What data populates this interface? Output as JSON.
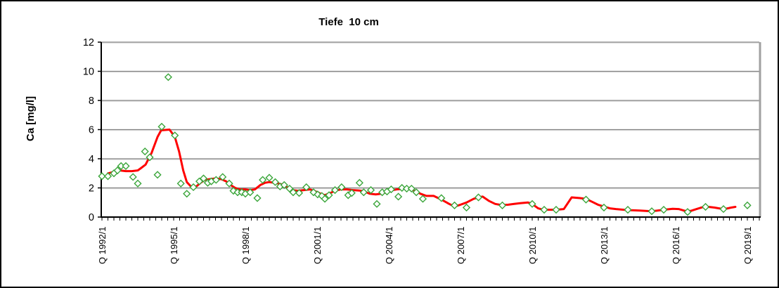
{
  "figure": {
    "title": "Tiefe  10 cm",
    "y_axis_title": "Ca [mg/l]"
  },
  "chart_data": {
    "type": "scatter",
    "title": "Tiefe  10 cm",
    "xlabel": "",
    "ylabel": "Ca [mg/l]",
    "ylim": [
      0,
      12
    ],
    "yticks": [
      0,
      2,
      4,
      6,
      8,
      10,
      12
    ],
    "grid": "horizontal",
    "legend": "none",
    "x_unit": "quarters_since_1992Q1",
    "x_range_quarters": [
      0,
      110
    ],
    "x_minor_tick_every": 1,
    "x_label_every": 12,
    "xtick_labels": [
      "Q 1992/1",
      "Q 1995/1",
      "Q 1998/1",
      "Q 2001/1",
      "Q 2004/1",
      "Q 2007/1",
      "Q 2010/1",
      "Q 2013/1",
      "Q 2016/1",
      "Q 2019/1"
    ],
    "colors": {
      "scatter": "#3BA63B",
      "trend": "#FF0000",
      "gridline": "#808080",
      "gridline_light": "#D9D9D9",
      "plot_border": "#A0A0A0",
      "axis": "#000000"
    },
    "series": [
      {
        "id": "measurements",
        "type": "scatter",
        "marker": "open-diamond",
        "color": "#3BA63B",
        "points": [
          [
            0,
            2.8
          ],
          [
            1,
            2.8
          ],
          [
            2,
            3.0
          ],
          [
            2.6,
            3.2
          ],
          [
            3.2,
            3.5
          ],
          [
            4,
            3.5
          ],
          [
            5.2,
            2.75
          ],
          [
            6,
            2.3
          ],
          [
            7.2,
            4.5
          ],
          [
            8,
            4.1
          ],
          [
            9.3,
            2.9
          ],
          [
            10,
            6.2
          ],
          [
            11.1,
            9.6
          ],
          [
            12.2,
            5.6
          ],
          [
            13.2,
            2.3
          ],
          [
            14.2,
            1.6
          ],
          [
            15.3,
            2.05
          ],
          [
            16.3,
            2.45
          ],
          [
            17,
            2.65
          ],
          [
            17.7,
            2.35
          ],
          [
            18.3,
            2.45
          ],
          [
            19.1,
            2.55
          ],
          [
            20.2,
            2.75
          ],
          [
            21.3,
            2.3
          ],
          [
            22,
            1.8
          ],
          [
            22.7,
            1.7
          ],
          [
            23.4,
            1.7
          ],
          [
            24,
            1.6
          ],
          [
            24.8,
            1.7
          ],
          [
            26,
            1.3
          ],
          [
            26.9,
            2.55
          ],
          [
            28,
            2.7
          ],
          [
            29,
            2.4
          ],
          [
            29.8,
            2.1
          ],
          [
            30.5,
            2.2
          ],
          [
            31.4,
            1.95
          ],
          [
            32,
            1.7
          ],
          [
            33,
            1.65
          ],
          [
            34.2,
            2.05
          ],
          [
            35.4,
            1.7
          ],
          [
            36.1,
            1.55
          ],
          [
            36.8,
            1.45
          ],
          [
            37.3,
            1.25
          ],
          [
            38,
            1.5
          ],
          [
            39,
            1.85
          ],
          [
            40.1,
            2.05
          ],
          [
            41.2,
            1.5
          ],
          [
            41.8,
            1.65
          ],
          [
            43.1,
            2.35
          ],
          [
            43.8,
            1.7
          ],
          [
            45,
            1.85
          ],
          [
            46,
            0.9
          ],
          [
            46.9,
            1.7
          ],
          [
            47.7,
            1.75
          ],
          [
            48.4,
            1.9
          ],
          [
            49.6,
            1.4
          ],
          [
            50.2,
            2.0
          ],
          [
            51,
            1.95
          ],
          [
            51.8,
            1.95
          ],
          [
            52.6,
            1.7
          ],
          [
            53.7,
            1.25
          ],
          [
            56.8,
            1.3
          ],
          [
            59,
            0.8
          ],
          [
            61,
            0.65
          ],
          [
            63,
            1.35
          ],
          [
            67,
            0.8
          ],
          [
            72,
            0.9
          ],
          [
            74,
            0.5
          ],
          [
            76,
            0.5
          ],
          [
            81,
            1.2
          ],
          [
            84,
            0.65
          ],
          [
            88,
            0.5
          ],
          [
            92,
            0.4
          ],
          [
            94,
            0.5
          ],
          [
            98,
            0.35
          ],
          [
            101,
            0.7
          ],
          [
            104,
            0.55
          ],
          [
            108,
            0.8
          ]
        ]
      },
      {
        "id": "trend",
        "type": "line",
        "color": "#FF0000",
        "points": [
          [
            1,
            3.0
          ],
          [
            2,
            3.1
          ],
          [
            3,
            3.2
          ],
          [
            4,
            3.15
          ],
          [
            5,
            3.15
          ],
          [
            6,
            3.2
          ],
          [
            6.5,
            3.35
          ],
          [
            7.3,
            3.6
          ],
          [
            8.3,
            4.4
          ],
          [
            9.3,
            5.5
          ],
          [
            9.9,
            5.95
          ],
          [
            11.3,
            6.0
          ],
          [
            12.2,
            5.5
          ],
          [
            12.9,
            4.5
          ],
          [
            13.6,
            3.2
          ],
          [
            14.2,
            2.4
          ],
          [
            15,
            2.05
          ],
          [
            15.8,
            2.1
          ],
          [
            16.5,
            2.35
          ],
          [
            17.2,
            2.55
          ],
          [
            18,
            2.6
          ],
          [
            19,
            2.65
          ],
          [
            20,
            2.6
          ],
          [
            20.8,
            2.45
          ],
          [
            21.5,
            2.2
          ],
          [
            22.3,
            2.0
          ],
          [
            23,
            1.9
          ],
          [
            24,
            1.9
          ],
          [
            24.8,
            1.85
          ],
          [
            25.6,
            1.9
          ],
          [
            26.5,
            2.2
          ],
          [
            27.3,
            2.35
          ],
          [
            28,
            2.4
          ],
          [
            29,
            2.35
          ],
          [
            30,
            2.25
          ],
          [
            30.8,
            2.1
          ],
          [
            31.8,
            1.85
          ],
          [
            32.8,
            1.8
          ],
          [
            33.8,
            1.85
          ],
          [
            34.8,
            1.9
          ],
          [
            35.8,
            1.75
          ],
          [
            36.6,
            1.6
          ],
          [
            37.3,
            1.5
          ],
          [
            38.2,
            1.65
          ],
          [
            39,
            1.8
          ],
          [
            40,
            1.9
          ],
          [
            41,
            1.9
          ],
          [
            42,
            1.85
          ],
          [
            43,
            1.82
          ],
          [
            43.8,
            1.78
          ],
          [
            44.8,
            1.6
          ],
          [
            45.8,
            1.55
          ],
          [
            46.8,
            1.6
          ],
          [
            47.6,
            1.7
          ],
          [
            48.4,
            1.83
          ],
          [
            49.3,
            1.9
          ],
          [
            50.2,
            1.93
          ],
          [
            51.3,
            1.93
          ],
          [
            52.3,
            1.8
          ],
          [
            53.3,
            1.6
          ],
          [
            54.3,
            1.45
          ],
          [
            55.5,
            1.45
          ],
          [
            56.8,
            1.2
          ],
          [
            58.1,
            0.9
          ],
          [
            59,
            0.72
          ],
          [
            60,
            0.85
          ],
          [
            61,
            1.0
          ],
          [
            62.2,
            1.25
          ],
          [
            63,
            1.35
          ],
          [
            63.7,
            1.4
          ],
          [
            64.8,
            1.1
          ],
          [
            65.8,
            0.9
          ],
          [
            66.9,
            0.82
          ],
          [
            68,
            0.85
          ],
          [
            69,
            0.9
          ],
          [
            70,
            0.95
          ],
          [
            71.3,
            1.0
          ],
          [
            71.9,
            0.92
          ],
          [
            73,
            0.6
          ],
          [
            73.8,
            0.5
          ],
          [
            76,
            0.5
          ],
          [
            77.3,
            0.55
          ],
          [
            78.6,
            1.35
          ],
          [
            80,
            1.3
          ],
          [
            81,
            1.25
          ],
          [
            82,
            1.05
          ],
          [
            83,
            0.85
          ],
          [
            84,
            0.72
          ],
          [
            85,
            0.6
          ],
          [
            86,
            0.55
          ],
          [
            87.8,
            0.48
          ],
          [
            90,
            0.45
          ],
          [
            92,
            0.4
          ],
          [
            93,
            0.45
          ],
          [
            94,
            0.5
          ],
          [
            95.5,
            0.57
          ],
          [
            96.5,
            0.55
          ],
          [
            97.6,
            0.42
          ],
          [
            98.5,
            0.42
          ],
          [
            99.5,
            0.55
          ],
          [
            100.5,
            0.68
          ],
          [
            101.5,
            0.7
          ],
          [
            102.5,
            0.65
          ],
          [
            103.5,
            0.58
          ],
          [
            104.5,
            0.58
          ],
          [
            105.3,
            0.65
          ],
          [
            106,
            0.7
          ]
        ]
      }
    ]
  }
}
